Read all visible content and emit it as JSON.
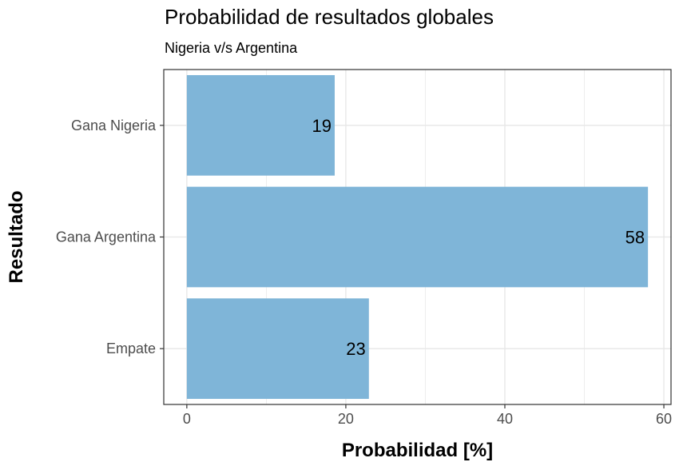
{
  "chart_data": {
    "type": "bar",
    "orientation": "horizontal",
    "title": "Probabilidad de resultados globales",
    "subtitle": "Nigeria v/s Argentina",
    "xlabel": "Probabilidad [%]",
    "ylabel": "Resultado",
    "categories": [
      "Gana Nigeria",
      "Gana Argentina",
      "Empate"
    ],
    "values": [
      18.6,
      58.0,
      22.9
    ],
    "data_labels": [
      "19",
      "58",
      "23"
    ],
    "xlim": [
      -2.9,
      60.9
    ],
    "x_ticks": [
      0,
      20,
      40,
      60
    ],
    "x_tick_labels": [
      "0",
      "20",
      "40",
      "60"
    ],
    "grid": true,
    "bar_color": "#7FB5D8",
    "grid_color": "#E6E6E6",
    "panel_border_color": "#333333"
  }
}
